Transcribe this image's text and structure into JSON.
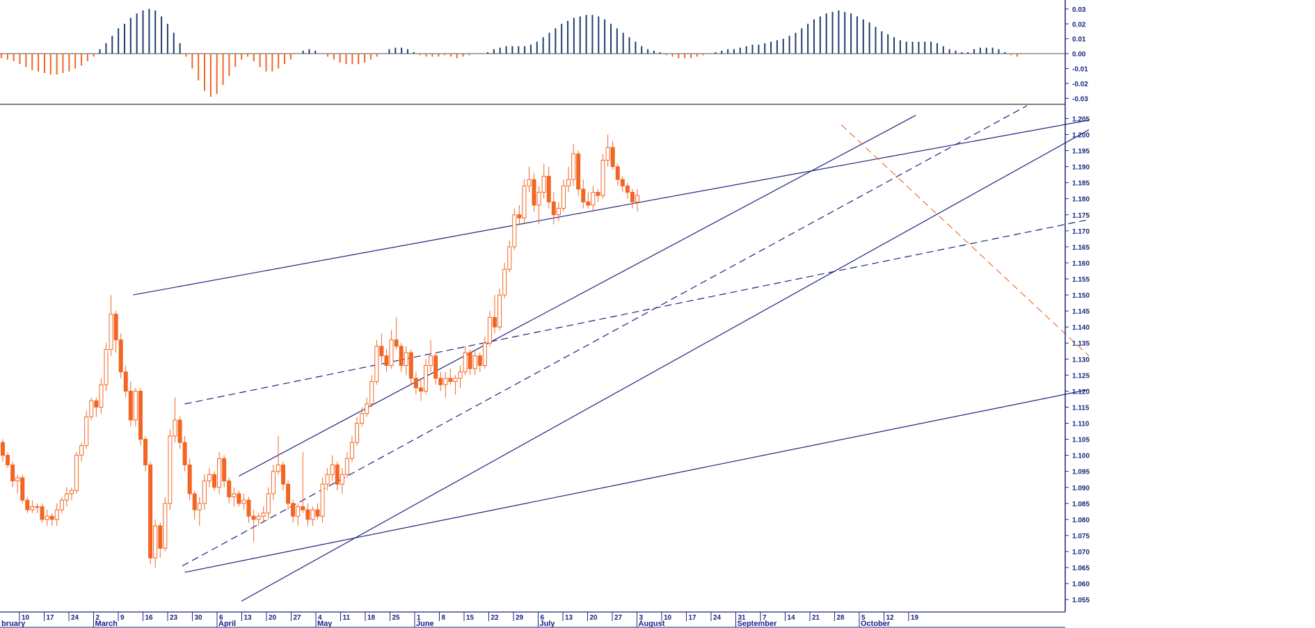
{
  "chart_data": {
    "type": "candlestick",
    "colors": {
      "candle": "#f26522",
      "osc_pos": "#1f3a6e",
      "osc_neg": "#f26522",
      "trendline": "#1a237e",
      "trendline_orange": "#f26522",
      "axis": "#1a237e"
    },
    "price_axis": {
      "ylim": [
        1.052,
        1.209
      ],
      "ticks": [
        "1.055",
        "1.060",
        "1.065",
        "1.070",
        "1.075",
        "1.080",
        "1.085",
        "1.090",
        "1.095",
        "1.100",
        "1.105",
        "1.110",
        "1.115",
        "1.120",
        "1.125",
        "1.130",
        "1.135",
        "1.140",
        "1.145",
        "1.150",
        "1.155",
        "1.160",
        "1.165",
        "1.170",
        "1.175",
        "1.180",
        "1.185",
        "1.190",
        "1.195",
        "1.200",
        "1.205"
      ]
    },
    "oscillator_axis": {
      "ylim": [
        -0.034,
        0.036
      ],
      "ticks": [
        "0.03",
        "0.02",
        "0.01",
        "0.00",
        "-0.01",
        "-0.02",
        "-0.03"
      ]
    },
    "x_axis": {
      "week_labels": [
        "10",
        "17",
        "24",
        "2",
        "9",
        "16",
        "23",
        "30",
        "6",
        "13",
        "20",
        "27",
        "4",
        "11",
        "18",
        "25",
        "1",
        "8",
        "15",
        "22",
        "29",
        "6",
        "13",
        "20",
        "27",
        "3",
        "10",
        "17",
        "24",
        "31",
        "7",
        "14",
        "21",
        "28",
        "5",
        "12",
        "19"
      ],
      "month_labels": [
        "bruary",
        "March",
        "April",
        "May",
        "June",
        "July",
        "August",
        "September",
        "October"
      ],
      "month_label_week_index": [
        0,
        3,
        8,
        12,
        16,
        21,
        25,
        29,
        34
      ]
    },
    "candles": [
      [
        1.104,
        1.105,
        1.098,
        1.1
      ],
      [
        1.1,
        1.101,
        1.096,
        1.097
      ],
      [
        1.097,
        1.098,
        1.09,
        1.092
      ],
      [
        1.092,
        1.094,
        1.088,
        1.093
      ],
      [
        1.093,
        1.094,
        1.085,
        1.086
      ],
      [
        1.086,
        1.087,
        1.082,
        1.083
      ],
      [
        1.083,
        1.086,
        1.082,
        1.084
      ],
      [
        1.084,
        1.085,
        1.082,
        1.084
      ],
      [
        1.084,
        1.085,
        1.079,
        1.08
      ],
      [
        1.08,
        1.083,
        1.078,
        1.081
      ],
      [
        1.081,
        1.082,
        1.078,
        1.08
      ],
      [
        1.08,
        1.085,
        1.078,
        1.083
      ],
      [
        1.083,
        1.087,
        1.082,
        1.086
      ],
      [
        1.086,
        1.09,
        1.084,
        1.088
      ],
      [
        1.088,
        1.09,
        1.086,
        1.089
      ],
      [
        1.089,
        1.101,
        1.088,
        1.1
      ],
      [
        1.1,
        1.104,
        1.098,
        1.103
      ],
      [
        1.103,
        1.114,
        1.102,
        1.112
      ],
      [
        1.112,
        1.118,
        1.111,
        1.117
      ],
      [
        1.117,
        1.118,
        1.112,
        1.115
      ],
      [
        1.115,
        1.124,
        1.113,
        1.122
      ],
      [
        1.122,
        1.135,
        1.12,
        1.133
      ],
      [
        1.133,
        1.15,
        1.131,
        1.144
      ],
      [
        1.144,
        1.145,
        1.132,
        1.136
      ],
      [
        1.136,
        1.138,
        1.124,
        1.126
      ],
      [
        1.126,
        1.128,
        1.118,
        1.12
      ],
      [
        1.12,
        1.123,
        1.109,
        1.111
      ],
      [
        1.111,
        1.121,
        1.109,
        1.12
      ],
      [
        1.12,
        1.121,
        1.103,
        1.105
      ],
      [
        1.105,
        1.106,
        1.095,
        1.097
      ],
      [
        1.097,
        1.098,
        1.066,
        1.068
      ],
      [
        1.068,
        1.08,
        1.065,
        1.078
      ],
      [
        1.078,
        1.079,
        1.068,
        1.071
      ],
      [
        1.071,
        1.087,
        1.07,
        1.085
      ],
      [
        1.085,
        1.108,
        1.083,
        1.106
      ],
      [
        1.106,
        1.118,
        1.104,
        1.111
      ],
      [
        1.111,
        1.112,
        1.102,
        1.104
      ],
      [
        1.104,
        1.106,
        1.095,
        1.097
      ],
      [
        1.097,
        1.099,
        1.086,
        1.088
      ],
      [
        1.088,
        1.089,
        1.08,
        1.083
      ],
      [
        1.083,
        1.087,
        1.078,
        1.085
      ],
      [
        1.085,
        1.094,
        1.083,
        1.092
      ],
      [
        1.092,
        1.096,
        1.09,
        1.094
      ],
      [
        1.094,
        1.095,
        1.089,
        1.09
      ],
      [
        1.09,
        1.101,
        1.088,
        1.099
      ],
      [
        1.099,
        1.1,
        1.09,
        1.092
      ],
      [
        1.092,
        1.093,
        1.085,
        1.087
      ],
      [
        1.087,
        1.09,
        1.084,
        1.088
      ],
      [
        1.088,
        1.089,
        1.084,
        1.085
      ],
      [
        1.085,
        1.088,
        1.083,
        1.086
      ],
      [
        1.086,
        1.087,
        1.079,
        1.081
      ],
      [
        1.081,
        1.083,
        1.073,
        1.08
      ],
      [
        1.08,
        1.082,
        1.078,
        1.081
      ],
      [
        1.081,
        1.084,
        1.079,
        1.082
      ],
      [
        1.082,
        1.09,
        1.08,
        1.088
      ],
      [
        1.088,
        1.097,
        1.086,
        1.095
      ],
      [
        1.095,
        1.106,
        1.094,
        1.097
      ],
      [
        1.097,
        1.098,
        1.089,
        1.091
      ],
      [
        1.091,
        1.092,
        1.083,
        1.085
      ],
      [
        1.085,
        1.086,
        1.079,
        1.081
      ],
      [
        1.081,
        1.085,
        1.078,
        1.084
      ],
      [
        1.084,
        1.101,
        1.082,
        1.083
      ],
      [
        1.083,
        1.085,
        1.078,
        1.08
      ],
      [
        1.08,
        1.084,
        1.078,
        1.083
      ],
      [
        1.083,
        1.085,
        1.08,
        1.081
      ],
      [
        1.081,
        1.093,
        1.079,
        1.091
      ],
      [
        1.091,
        1.096,
        1.089,
        1.094
      ],
      [
        1.094,
        1.1,
        1.092,
        1.097
      ],
      [
        1.097,
        1.098,
        1.089,
        1.091
      ],
      [
        1.091,
        1.096,
        1.088,
        1.094
      ],
      [
        1.094,
        1.101,
        1.093,
        1.099
      ],
      [
        1.099,
        1.106,
        1.098,
        1.104
      ],
      [
        1.104,
        1.112,
        1.103,
        1.11
      ],
      [
        1.11,
        1.115,
        1.109,
        1.113
      ],
      [
        1.113,
        1.118,
        1.112,
        1.116
      ],
      [
        1.116,
        1.125,
        1.115,
        1.123
      ],
      [
        1.123,
        1.136,
        1.122,
        1.134
      ],
      [
        1.134,
        1.138,
        1.129,
        1.131
      ],
      [
        1.131,
        1.133,
        1.126,
        1.128
      ],
      [
        1.128,
        1.139,
        1.127,
        1.136
      ],
      [
        1.136,
        1.143,
        1.133,
        1.134
      ],
      [
        1.134,
        1.135,
        1.126,
        1.128
      ],
      [
        1.128,
        1.134,
        1.125,
        1.132
      ],
      [
        1.132,
        1.133,
        1.122,
        1.124
      ],
      [
        1.124,
        1.126,
        1.119,
        1.121
      ],
      [
        1.121,
        1.124,
        1.117,
        1.12
      ],
      [
        1.12,
        1.13,
        1.119,
        1.128
      ],
      [
        1.128,
        1.136,
        1.126,
        1.131
      ],
      [
        1.131,
        1.132,
        1.122,
        1.124
      ],
      [
        1.124,
        1.126,
        1.12,
        1.122
      ],
      [
        1.122,
        1.126,
        1.118,
        1.124
      ],
      [
        1.124,
        1.127,
        1.122,
        1.123
      ],
      [
        1.123,
        1.125,
        1.119,
        1.124
      ],
      [
        1.124,
        1.128,
        1.121,
        1.126
      ],
      [
        1.126,
        1.134,
        1.125,
        1.132
      ],
      [
        1.132,
        1.133,
        1.125,
        1.127
      ],
      [
        1.127,
        1.133,
        1.125,
        1.131
      ],
      [
        1.131,
        1.132,
        1.126,
        1.128
      ],
      [
        1.128,
        1.137,
        1.127,
        1.135
      ],
      [
        1.135,
        1.145,
        1.134,
        1.143
      ],
      [
        1.143,
        1.15,
        1.138,
        1.14
      ],
      [
        1.14,
        1.152,
        1.139,
        1.15
      ],
      [
        1.15,
        1.16,
        1.149,
        1.158
      ],
      [
        1.158,
        1.167,
        1.157,
        1.165
      ],
      [
        1.165,
        1.177,
        1.164,
        1.175
      ],
      [
        1.175,
        1.178,
        1.172,
        1.174
      ],
      [
        1.174,
        1.186,
        1.172,
        1.184
      ],
      [
        1.184,
        1.19,
        1.182,
        1.186
      ],
      [
        1.186,
        1.188,
        1.176,
        1.178
      ],
      [
        1.178,
        1.184,
        1.172,
        1.182
      ],
      [
        1.182,
        1.191,
        1.18,
        1.187
      ],
      [
        1.187,
        1.19,
        1.177,
        1.179
      ],
      [
        1.179,
        1.182,
        1.172,
        1.175
      ],
      [
        1.175,
        1.179,
        1.173,
        1.177
      ],
      [
        1.177,
        1.186,
        1.176,
        1.184
      ],
      [
        1.184,
        1.19,
        1.182,
        1.186
      ],
      [
        1.186,
        1.197,
        1.184,
        1.194
      ],
      [
        1.194,
        1.195,
        1.181,
        1.183
      ],
      [
        1.183,
        1.186,
        1.177,
        1.179
      ],
      [
        1.179,
        1.182,
        1.177,
        1.178
      ],
      [
        1.178,
        1.184,
        1.176,
        1.182
      ],
      [
        1.182,
        1.183,
        1.179,
        1.181
      ],
      [
        1.181,
        1.194,
        1.18,
        1.192
      ],
      [
        1.192,
        1.2,
        1.19,
        1.196
      ],
      [
        1.196,
        1.198,
        1.189,
        1.19
      ],
      [
        1.19,
        1.191,
        1.184,
        1.186
      ],
      [
        1.186,
        1.187,
        1.182,
        1.184
      ],
      [
        1.184,
        1.185,
        1.18,
        1.182
      ],
      [
        1.182,
        1.183,
        1.177,
        1.179
      ],
      [
        1.179,
        1.183,
        1.176,
        1.181
      ]
    ],
    "oscillator": [
      -0.003,
      -0.004,
      -0.005,
      -0.007,
      -0.009,
      -0.011,
      -0.012,
      -0.013,
      -0.014,
      -0.014,
      -0.013,
      -0.012,
      -0.01,
      -0.008,
      -0.005,
      -0.002,
      0.003,
      0.007,
      0.012,
      0.017,
      0.02,
      0.024,
      0.027,
      0.029,
      0.03,
      0.029,
      0.025,
      0.02,
      0.014,
      0.007,
      -0.002,
      -0.01,
      -0.018,
      -0.025,
      -0.029,
      -0.027,
      -0.021,
      -0.015,
      -0.009,
      -0.004,
      -0.002,
      -0.005,
      -0.009,
      -0.012,
      -0.012,
      -0.01,
      -0.007,
      -0.004,
      0.0,
      0.002,
      0.003,
      0.002,
      0.0,
      -0.002,
      -0.004,
      -0.006,
      -0.007,
      -0.007,
      -0.007,
      -0.006,
      -0.004,
      -0.002,
      0.0,
      0.003,
      0.004,
      0.004,
      0.003,
      0.001,
      -0.001,
      -0.002,
      -0.002,
      -0.002,
      -0.001,
      -0.002,
      -0.003,
      -0.002,
      -0.001,
      0.0,
      0.0,
      0.001,
      0.003,
      0.004,
      0.005,
      0.005,
      0.005,
      0.005,
      0.006,
      0.008,
      0.011,
      0.014,
      0.017,
      0.02,
      0.022,
      0.024,
      0.025,
      0.026,
      0.026,
      0.025,
      0.023,
      0.02,
      0.017,
      0.014,
      0.011,
      0.008,
      0.005,
      0.003,
      0.002,
      0.001,
      -0.001,
      -0.002,
      -0.003,
      -0.003,
      -0.003,
      -0.002,
      -0.001,
      0.0,
      0.001,
      0.002,
      0.003,
      0.003,
      0.004,
      0.005,
      0.006,
      0.006,
      0.007,
      0.008,
      0.009,
      0.01,
      0.012,
      0.014,
      0.017,
      0.02,
      0.023,
      0.025,
      0.027,
      0.028,
      0.029,
      0.028,
      0.027,
      0.025,
      0.023,
      0.021,
      0.018,
      0.015,
      0.013,
      0.011,
      0.009,
      0.008,
      0.008,
      0.008,
      0.008,
      0.008,
      0.007,
      0.005,
      0.003,
      0.002,
      0.001,
      0.001,
      0.003,
      0.004,
      0.004,
      0.004,
      0.003,
      0.001,
      -0.001,
      -0.002
    ]
  }
}
